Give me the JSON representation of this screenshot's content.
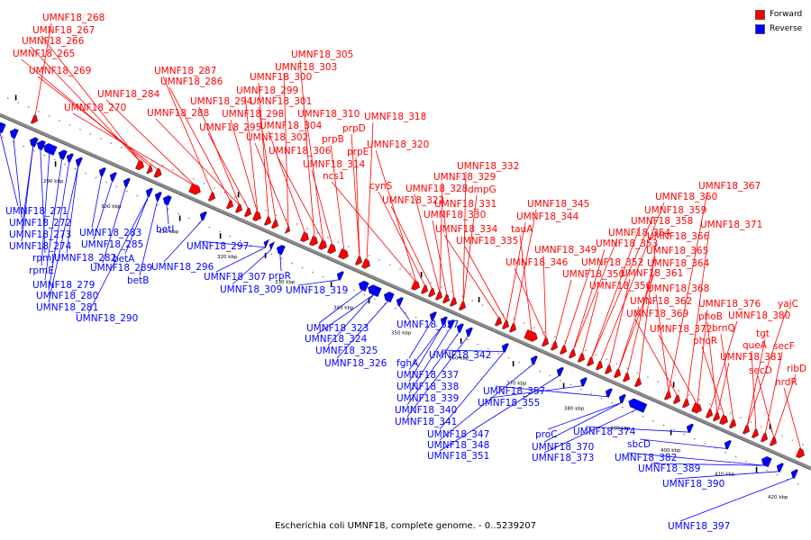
{
  "legend": {
    "forward": {
      "label": "Forward",
      "color": "#ff0000"
    },
    "reverse": {
      "label": "Reverse",
      "color": "#0000ff"
    }
  },
  "caption": "Escherichia coli UMNF18, complete genome. - 0..5239207",
  "colors": {
    "forward": "#ff0000",
    "reverse": "#0000ff",
    "backbone": "#8a8a8a"
  },
  "ticks": [
    "290 kbp",
    "300 kbp",
    "310 kbp",
    "320 kbp",
    "330 kbp",
    "340 kbp",
    "350 kbp",
    "360 kbp",
    "370 kbp",
    "380 kbp",
    "390 kbp",
    "400 kbp",
    "410 kbp",
    "420 kbp"
  ],
  "forward_labels": [
    "UMNF18_268",
    "UMNF18_267",
    "UMNF18_266",
    "UMNF18_265",
    "UMNF18_269",
    "UMNF18_270",
    "UMNF18_284",
    "UMNF18_287",
    "UMNF18_286",
    "UMNF18_288",
    "UMNF18_294",
    "UMNF18_295",
    "UMNF18_298",
    "UMNF18_299",
    "UMNF18_300",
    "UMNF18_301",
    "UMNF18_302",
    "UMNF18_303",
    "UMNF18_304",
    "UMNF18_305",
    "UMNF18_306",
    "UMNF18_310",
    "UMNF18_314",
    "prpB",
    "prpD",
    "prpE",
    "UMNF18_318",
    "ncs1",
    "UMNF18_320",
    "cynS",
    "UMNF18_322",
    "UMNF18_328",
    "UMNF18_329",
    "UMNF18_330",
    "UMNF18_331",
    "UMNF18_332",
    "dmpG",
    "UMNF18_334",
    "UMNF18_335",
    "UMNF18_344",
    "UMNF18_345",
    "tauA",
    "UMNF18_346",
    "UMNF18_349",
    "UMNF18_350",
    "UMNF18_352",
    "UMNF18_353",
    "UMNF18_354",
    "UMNF18_356",
    "UMNF18_358",
    "UMNF18_359",
    "UMNF18_360",
    "UMNF18_361",
    "UMNF18_362",
    "UMNF18_364",
    "UMNF18_365",
    "UMNF18_366",
    "UMNF18_367",
    "UMNF18_368",
    "UMNF18_369",
    "UMNF18_371",
    "UMNF18_372",
    "UMNF18_376",
    "UMNF18_380",
    "UMNF18_381",
    "phoB",
    "phoR",
    "brnQ",
    "yajC",
    "tgt",
    "queA",
    "secF",
    "secD",
    "ribD",
    "nrdR"
  ],
  "reverse_labels": [
    "UMNF18_271",
    "UMNF18_272",
    "UMNF18_273",
    "UMNF18_274",
    "rpmJ",
    "rpmE",
    "UMNF18_279",
    "UMNF18_280",
    "UMNF18_281",
    "UMNF18_282",
    "UMNF18_283",
    "UMNF18_285",
    "UMNF18_289",
    "UMNF18_290",
    "betA",
    "betB",
    "betI",
    "UMNF18_296",
    "UMNF18_297",
    "UMNF18_307",
    "UMNF18_309",
    "prpR",
    "UMNF18_319",
    "UMNF18_323",
    "UMNF18_324",
    "UMNF18_325",
    "UMNF18_326",
    "UMNF18_327",
    "fghA",
    "UMNF18_337",
    "UMNF18_338",
    "UMNF18_339",
    "UMNF18_340",
    "UMNF18_341",
    "UMNF18_342",
    "UMNF18_347",
    "UMNF18_348",
    "UMNF18_351",
    "UMNF18_355",
    "UMNF18_357",
    "proC",
    "UMNF18_370",
    "UMNF18_373",
    "UMNF18_374",
    "sbcD",
    "UMNF18_382",
    "UMNF18_389",
    "UMNF18_390",
    "UMNF18_397"
  ]
}
